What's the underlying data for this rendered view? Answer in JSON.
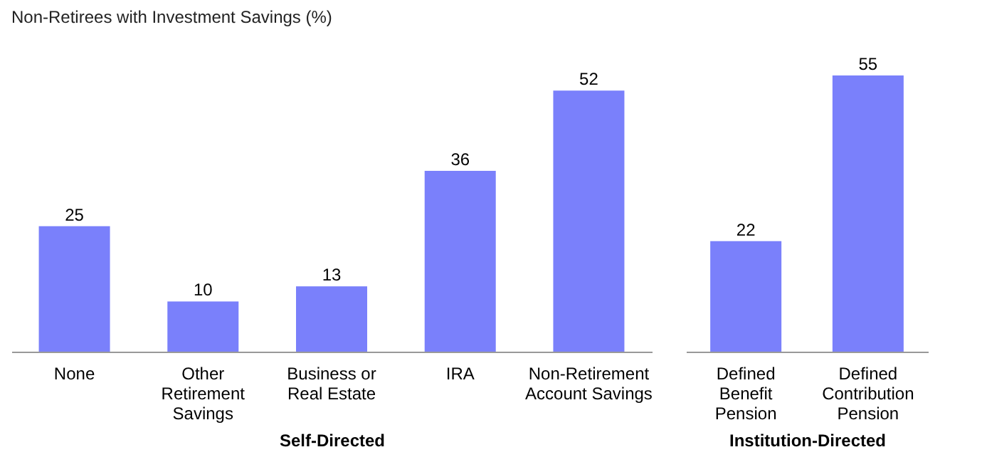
{
  "chart_data": [
    {
      "type": "bar",
      "title": "Non-Retirees with Investment Savings (%)",
      "xlabel": "Self-Directed",
      "categories": [
        "None",
        "Other Retirement Savings",
        "Business or Real Estate",
        "IRA",
        "Non-Retirement Account Savings"
      ],
      "values": [
        25,
        10,
        13,
        36,
        52
      ],
      "color": "#7a80fb",
      "data_labels": true
    },
    {
      "type": "bar",
      "xlabel": "Institution-Directed",
      "categories": [
        "Defined Benefit Pension",
        "Defined Contribution Pension"
      ],
      "values": [
        22,
        55
      ],
      "color": "#7a80fb",
      "data_labels": true
    }
  ]
}
